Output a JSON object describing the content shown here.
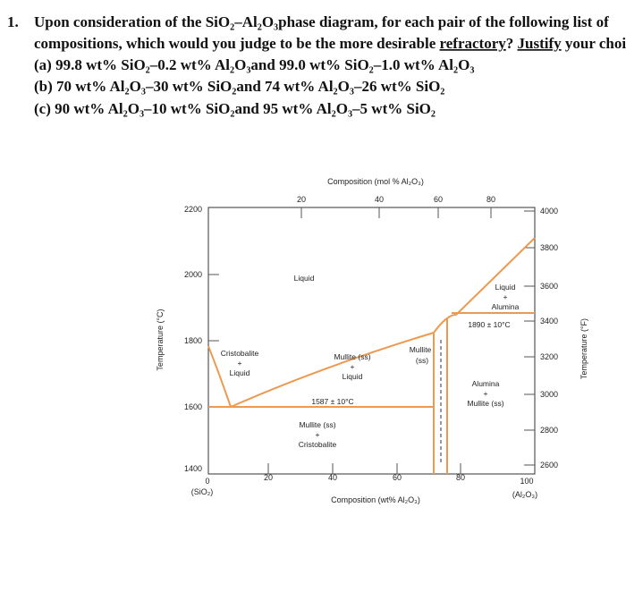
{
  "question": {
    "number": "1.",
    "line1": "Upon consideration of the SiO₂–Al₂O₃phase diagram, for each pair of the following list of",
    "line2": [
      "compositions, which would you judge to be the more desirable ",
      "refractory",
      "? ",
      "Justify",
      " your choices."
    ],
    "parts": [
      "(a) 99.8 wt% SiO₂–0.2 wt% Al₂O₃and 99.0 wt% SiO₂–1.0 wt% Al₂O₃",
      "(b) 70 wt% Al₂O₃–30 wt% SiO₂and 74 wt% Al₂O₃–26 wt% SiO₂",
      "(c) 90 wt% Al₂O₃–10 wt% SiO₂and 95 wt% Al₂O₃–5 wt% SiO₂"
    ]
  },
  "diagram": {
    "top_title": "Composition (mol % Al₂O₃)",
    "top_ticks": [
      "20",
      "40",
      "60",
      "80"
    ],
    "left_title": "Temperature (°C)",
    "left_ticks": [
      "2200",
      "2000",
      "1800",
      "1600",
      "1400"
    ],
    "right_title": "Temperature (°F)",
    "right_ticks": [
      "4000",
      "3800",
      "3600",
      "3400",
      "3200",
      "3000",
      "2800",
      "2600"
    ],
    "bottom_title": "Composition (wt% Al₂O₃)",
    "bottom_ticks": [
      "0",
      "20",
      "40",
      "60",
      "80",
      "100"
    ],
    "left_end": "(SiO₂)",
    "right_end": "(Al₂O₃)",
    "regions": {
      "liquid": "Liquid",
      "liquid_alumina": [
        "Liquid",
        "+",
        "Alumina"
      ],
      "cristobalite_liquid": [
        "Cristobalite",
        "+",
        "Liquid"
      ],
      "mullite_liquid": [
        "Mullite (ss)",
        "+",
        "Liquid"
      ],
      "mullite": [
        "Mullite",
        "(ss)"
      ],
      "alumina_mullite": [
        "Alumina",
        "+",
        "Mullite (ss)"
      ],
      "mullite_cristobalite": [
        "Mullite (ss)",
        "+",
        "Cristobalite"
      ]
    },
    "eutectic_high": "1890 ± 10°C",
    "eutectic_low": "1587 ± 10°C"
  }
}
